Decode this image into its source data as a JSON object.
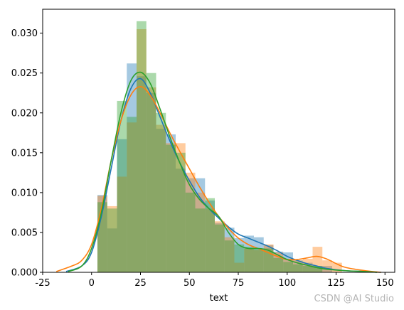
{
  "chart_data": {
    "type": "histogram-kde",
    "xlabel": "text",
    "ylabel": "",
    "xlim": [
      -25,
      155
    ],
    "ylim": [
      0,
      0.033
    ],
    "xticks": [
      "-25",
      "0",
      "25",
      "50",
      "75",
      "100",
      "125",
      "150"
    ],
    "yticks": [
      "0.000",
      "0.005",
      "0.010",
      "0.015",
      "0.020",
      "0.025",
      "0.030"
    ],
    "bin_width": 5,
    "series": [
      {
        "color": "#1f77b4",
        "bins": [
          {
            "x": 3,
            "y": 0.0097
          },
          {
            "x": 8,
            "y": 0.0055
          },
          {
            "x": 13,
            "y": 0.0167
          },
          {
            "x": 18,
            "y": 0.0262
          },
          {
            "x": 23,
            "y": 0.0246
          },
          {
            "x": 28,
            "y": 0.0225
          },
          {
            "x": 33,
            "y": 0.018
          },
          {
            "x": 38,
            "y": 0.0173
          },
          {
            "x": 43,
            "y": 0.013
          },
          {
            "x": 48,
            "y": 0.0118
          },
          {
            "x": 53,
            "y": 0.0118
          },
          {
            "x": 58,
            "y": 0.009
          },
          {
            "x": 63,
            "y": 0.0062
          },
          {
            "x": 68,
            "y": 0.0056
          },
          {
            "x": 73,
            "y": 0.0043
          },
          {
            "x": 78,
            "y": 0.0046
          },
          {
            "x": 83,
            "y": 0.0044
          },
          {
            "x": 88,
            "y": 0.0034
          },
          {
            "x": 93,
            "y": 0.0026
          },
          {
            "x": 98,
            "y": 0.0025
          },
          {
            "x": 103,
            "y": 0.0015
          },
          {
            "x": 108,
            "y": 0.0012
          },
          {
            "x": 113,
            "y": 0.0008
          },
          {
            "x": 118,
            "y": 0.0008
          }
        ],
        "kde": [
          [
            -13,
            0.0001
          ],
          [
            -5,
            0.0008
          ],
          [
            0,
            0.0025
          ],
          [
            5,
            0.007
          ],
          [
            10,
            0.013
          ],
          [
            15,
            0.019
          ],
          [
            20,
            0.023
          ],
          [
            25,
            0.0243
          ],
          [
            30,
            0.0225
          ],
          [
            35,
            0.0195
          ],
          [
            40,
            0.0165
          ],
          [
            45,
            0.0138
          ],
          [
            50,
            0.0115
          ],
          [
            55,
            0.0095
          ],
          [
            60,
            0.008
          ],
          [
            65,
            0.0068
          ],
          [
            70,
            0.0057
          ],
          [
            75,
            0.0048
          ],
          [
            80,
            0.0043
          ],
          [
            85,
            0.0038
          ],
          [
            90,
            0.0033
          ],
          [
            95,
            0.0027
          ],
          [
            100,
            0.002
          ],
          [
            105,
            0.0015
          ],
          [
            110,
            0.0011
          ],
          [
            115,
            0.0008
          ],
          [
            120,
            0.0005
          ],
          [
            130,
            0.0002
          ],
          [
            140,
            0.0001
          ],
          [
            148,
            0.0
          ]
        ]
      },
      {
        "color": "#ff7f0e",
        "bins": [
          {
            "x": 3,
            "y": 0.0096
          },
          {
            "x": 8,
            "y": 0.0083
          },
          {
            "x": 13,
            "y": 0.012
          },
          {
            "x": 18,
            "y": 0.0188
          },
          {
            "x": 23,
            "y": 0.0305
          },
          {
            "x": 28,
            "y": 0.0232
          },
          {
            "x": 33,
            "y": 0.0185
          },
          {
            "x": 38,
            "y": 0.0162
          },
          {
            "x": 43,
            "y": 0.0162
          },
          {
            "x": 48,
            "y": 0.0125
          },
          {
            "x": 53,
            "y": 0.01
          },
          {
            "x": 58,
            "y": 0.008
          },
          {
            "x": 63,
            "y": 0.0064
          },
          {
            "x": 68,
            "y": 0.0044
          },
          {
            "x": 73,
            "y": 0.0012
          },
          {
            "x": 78,
            "y": 0.003
          },
          {
            "x": 83,
            "y": 0.0028
          },
          {
            "x": 88,
            "y": 0.0035
          },
          {
            "x": 93,
            "y": 0.0025
          },
          {
            "x": 98,
            "y": 0.0017
          },
          {
            "x": 103,
            "y": 0.0015
          },
          {
            "x": 108,
            "y": 0.0017
          },
          {
            "x": 113,
            "y": 0.0032
          },
          {
            "x": 118,
            "y": 0.0015
          },
          {
            "x": 123,
            "y": 0.0012
          }
        ],
        "kde": [
          [
            -18,
            0.0001
          ],
          [
            -10,
            0.0008
          ],
          [
            -5,
            0.0015
          ],
          [
            0,
            0.0035
          ],
          [
            5,
            0.008
          ],
          [
            10,
            0.014
          ],
          [
            15,
            0.019
          ],
          [
            20,
            0.0222
          ],
          [
            25,
            0.0233
          ],
          [
            30,
            0.0222
          ],
          [
            35,
            0.02
          ],
          [
            40,
            0.0175
          ],
          [
            45,
            0.0152
          ],
          [
            50,
            0.013
          ],
          [
            55,
            0.0108
          ],
          [
            60,
            0.0088
          ],
          [
            65,
            0.007
          ],
          [
            70,
            0.0055
          ],
          [
            75,
            0.0043
          ],
          [
            80,
            0.0035
          ],
          [
            85,
            0.003
          ],
          [
            90,
            0.0025
          ],
          [
            95,
            0.002
          ],
          [
            100,
            0.0016
          ],
          [
            105,
            0.0016
          ],
          [
            110,
            0.0018
          ],
          [
            115,
            0.002
          ],
          [
            120,
            0.0017
          ],
          [
            125,
            0.0011
          ],
          [
            130,
            0.0006
          ],
          [
            140,
            0.0002
          ],
          [
            148,
            0.0
          ]
        ]
      },
      {
        "color": "#2ca02c",
        "bins": [
          {
            "x": 3,
            "y": 0.0088
          },
          {
            "x": 8,
            "y": 0.008
          },
          {
            "x": 13,
            "y": 0.0215
          },
          {
            "x": 18,
            "y": 0.0195
          },
          {
            "x": 23,
            "y": 0.0315
          },
          {
            "x": 28,
            "y": 0.025
          },
          {
            "x": 33,
            "y": 0.02
          },
          {
            "x": 38,
            "y": 0.016
          },
          {
            "x": 43,
            "y": 0.015
          },
          {
            "x": 48,
            "y": 0.01
          },
          {
            "x": 53,
            "y": 0.008
          },
          {
            "x": 58,
            "y": 0.0093
          },
          {
            "x": 63,
            "y": 0.006
          },
          {
            "x": 68,
            "y": 0.004
          },
          {
            "x": 73,
            "y": 0.0035
          },
          {
            "x": 78,
            "y": 0.0032
          },
          {
            "x": 83,
            "y": 0.003
          },
          {
            "x": 88,
            "y": 0.003
          },
          {
            "x": 93,
            "y": 0.0018
          },
          {
            "x": 98,
            "y": 0.0013
          },
          {
            "x": 103,
            "y": 0.001
          },
          {
            "x": 108,
            "y": 0.0008
          },
          {
            "x": 113,
            "y": 0.0008
          }
        ],
        "kde": [
          [
            -12,
            0.0001
          ],
          [
            -5,
            0.0008
          ],
          [
            0,
            0.003
          ],
          [
            5,
            0.0075
          ],
          [
            10,
            0.014
          ],
          [
            15,
            0.02
          ],
          [
            20,
            0.024
          ],
          [
            25,
            0.0251
          ],
          [
            30,
            0.0237
          ],
          [
            35,
            0.0205
          ],
          [
            40,
            0.017
          ],
          [
            45,
            0.0138
          ],
          [
            50,
            0.011
          ],
          [
            55,
            0.0092
          ],
          [
            60,
            0.008
          ],
          [
            65,
            0.007
          ],
          [
            70,
            0.005
          ],
          [
            75,
            0.0035
          ],
          [
            80,
            0.003
          ],
          [
            85,
            0.003
          ],
          [
            90,
            0.0028
          ],
          [
            95,
            0.0022
          ],
          [
            100,
            0.0016
          ],
          [
            105,
            0.0012
          ],
          [
            110,
            0.0009
          ],
          [
            115,
            0.0006
          ],
          [
            120,
            0.0004
          ],
          [
            130,
            0.0002
          ],
          [
            140,
            0.0001
          ],
          [
            146,
            0.0
          ]
        ]
      }
    ]
  },
  "watermark": "CSDN @AI Studio"
}
